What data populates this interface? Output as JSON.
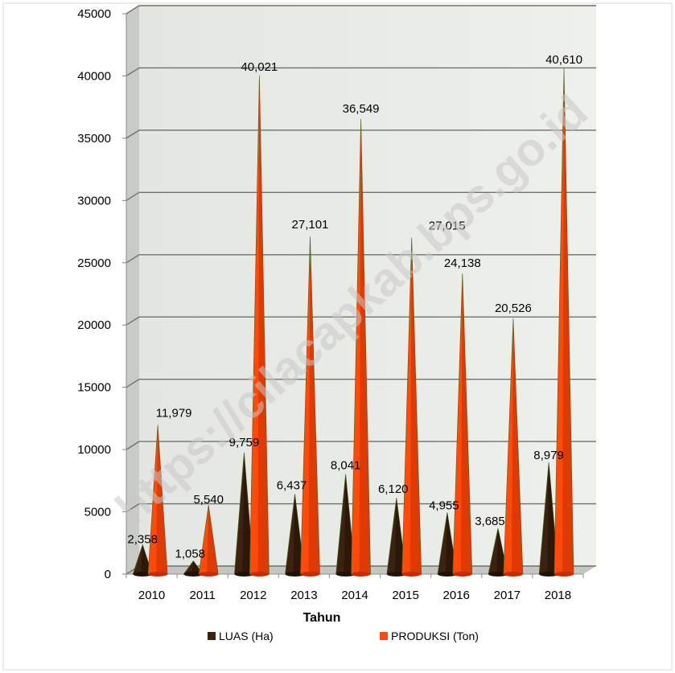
{
  "chart_data": {
    "type": "bar",
    "subtype": "3d-cone",
    "categories": [
      "2010",
      "2011",
      "2012",
      "2013",
      "2014",
      "2015",
      "2016",
      "2017",
      "2018"
    ],
    "series": [
      {
        "name": "LUAS (Ha)",
        "color": "#3d2210",
        "values": [
          2358,
          1058,
          9759,
          6437,
          8041,
          6120,
          4955,
          3685,
          8979
        ],
        "labels": [
          "2,358",
          "1,058",
          "9,759",
          "6,437",
          "8,041",
          "6,120",
          "4,955",
          "3,685",
          "8,979"
        ]
      },
      {
        "name": "PRODUKSI (Ton)",
        "color": "#ff4a0a",
        "values": [
          11979,
          5540,
          40021,
          27101,
          36549,
          27015,
          24138,
          20526,
          40610
        ],
        "labels": [
          "11,979",
          "5,540",
          "40,021",
          "27,101",
          "36,549",
          "27,015",
          "24,138",
          "20,526",
          "40,610"
        ]
      }
    ],
    "yticks": [
      "0",
      "5000",
      "10000",
      "15000",
      "20000",
      "25000",
      "30000",
      "35000",
      "40000",
      "45000"
    ],
    "ylim": [
      0,
      45000
    ],
    "xlabel": "Tahun",
    "ylabel": "",
    "title": "",
    "grid": true,
    "legend_position": "bottom",
    "watermark": "https://cilacapkab.bps.go.id"
  }
}
